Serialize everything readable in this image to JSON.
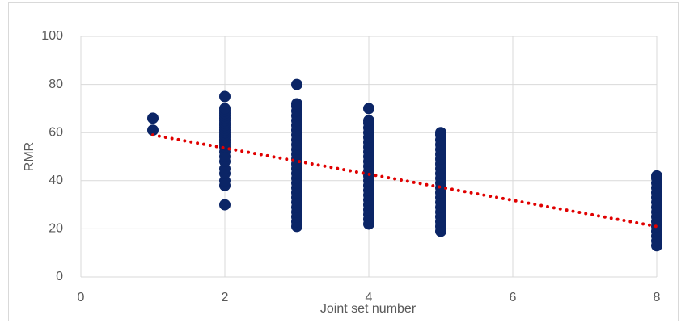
{
  "chart_data": {
    "type": "scatter",
    "x_label": "Joint set number",
    "y_label": "RMR",
    "xlim": [
      0,
      8
    ],
    "xticks": [
      0,
      2,
      4,
      6,
      8
    ],
    "ylim": [
      0,
      100
    ],
    "yticks": [
      0,
      20,
      40,
      60,
      80,
      100
    ],
    "grid": true,
    "series": [
      {
        "color": "#0b2566",
        "marker": "circle",
        "x": [
          1,
          1,
          2,
          2,
          2,
          2,
          2,
          2,
          2,
          2,
          2,
          2,
          2,
          2,
          2,
          2,
          2,
          2,
          2,
          2,
          2,
          2,
          2,
          2,
          2,
          2,
          2,
          2,
          3,
          3,
          3,
          3,
          3,
          3,
          3,
          3,
          3,
          3,
          3,
          3,
          3,
          3,
          3,
          3,
          3,
          3,
          3,
          3,
          3,
          3,
          3,
          3,
          3,
          3,
          3,
          3,
          4,
          4,
          4,
          4,
          4,
          4,
          4,
          4,
          4,
          4,
          4,
          4,
          4,
          4,
          4,
          4,
          4,
          4,
          4,
          4,
          4,
          4,
          4,
          4,
          5,
          5,
          5,
          5,
          5,
          5,
          5,
          5,
          5,
          5,
          5,
          5,
          5,
          5,
          5,
          5,
          5,
          5,
          5,
          5,
          5,
          5,
          8,
          8,
          8,
          8,
          8,
          8,
          8,
          8,
          8,
          8,
          8,
          8,
          8,
          8,
          8,
          8
        ],
        "y": [
          61,
          66,
          30,
          38,
          40,
          43,
          45,
          48,
          50,
          52,
          54,
          55,
          56,
          57,
          58,
          59,
          60,
          61,
          62,
          63,
          64,
          65,
          66,
          67,
          68,
          69,
          70,
          75,
          21,
          23,
          25,
          27,
          29,
          31,
          33,
          35,
          37,
          39,
          41,
          43,
          45,
          47,
          49,
          51,
          53,
          55,
          57,
          59,
          61,
          63,
          65,
          67,
          69,
          71,
          72,
          80,
          22,
          24,
          26,
          28,
          30,
          32,
          34,
          36,
          38,
          40,
          42,
          44,
          46,
          48,
          50,
          52,
          54,
          56,
          58,
          60,
          62,
          64,
          65,
          70,
          19,
          21,
          23,
          25,
          27,
          29,
          31,
          33,
          35,
          37,
          39,
          41,
          43,
          45,
          47,
          49,
          51,
          53,
          55,
          57,
          59,
          60,
          13,
          15,
          17,
          19,
          21,
          23,
          25,
          27,
          29,
          31,
          33,
          35,
          37,
          39,
          41,
          42
        ]
      },
      {
        "color": "#e00000",
        "style": "dotted",
        "x": [
          1,
          8
        ],
        "y": [
          59,
          21
        ]
      }
    ]
  }
}
